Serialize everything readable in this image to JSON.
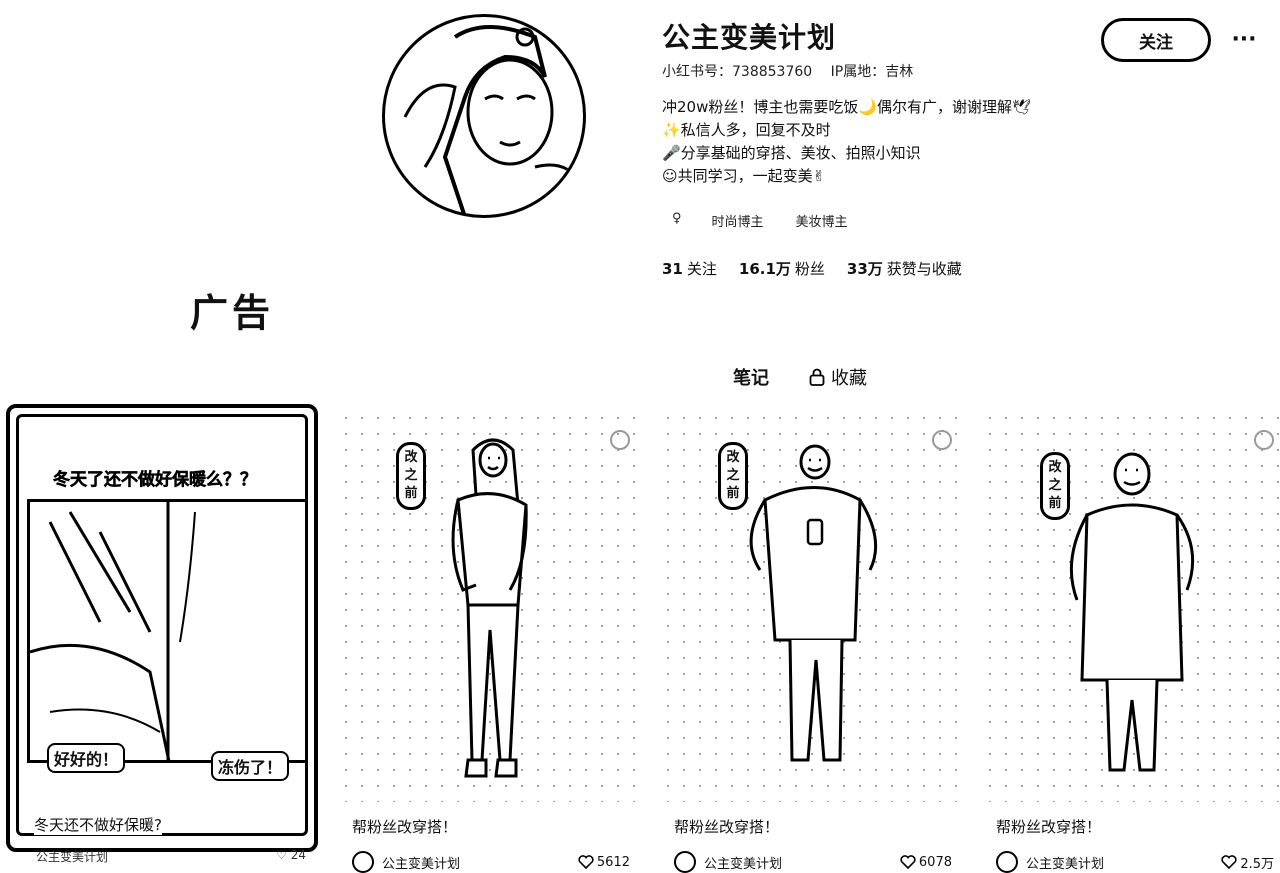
{
  "profile": {
    "username": "公主变美计划",
    "xhs_id": "小红书号：738853760",
    "ip_location": "IP属地：吉林",
    "bio": [
      "冲20w粉丝！博主也需要吃饭🌙偶尔有广，谢谢理解🕊",
      "✨私信人多，回复不及时",
      "🎤分享基础的穿搭、美妆、拍照小知识",
      "☺共同学习，一起变美✌"
    ],
    "gender_icon": "♀",
    "tags": [
      "时尚博主",
      "美妆博主"
    ],
    "stats": {
      "following_count": "31",
      "following_label": "关注",
      "fans_count": "16.1万",
      "fans_label": "粉丝",
      "likes_count": "33万",
      "likes_label": "获赞与收藏"
    },
    "follow_label": "关注",
    "more_label": "···"
  },
  "ad_label": "广告",
  "tabs": {
    "notes": "笔记",
    "collections": "收藏"
  },
  "ad_card": {
    "headline": "冬天了还不做好保暖么？？",
    "bubble_left": "好好的！",
    "bubble_right": "冻伤了！",
    "title": "冬天还不做好保暖?",
    "author": "公主变美计划",
    "likes": "24"
  },
  "cards": [
    {
      "badge": "改之前",
      "title": "帮粉丝改穿搭！",
      "author": "公主变美计划",
      "likes": "5612"
    },
    {
      "badge": "改之前",
      "title": "帮粉丝改穿搭！",
      "author": "公主变美计划",
      "likes": "6078"
    },
    {
      "badge": "改之前",
      "title": "帮粉丝改穿搭！",
      "author": "公主变美计划",
      "likes": "2.5万"
    }
  ]
}
